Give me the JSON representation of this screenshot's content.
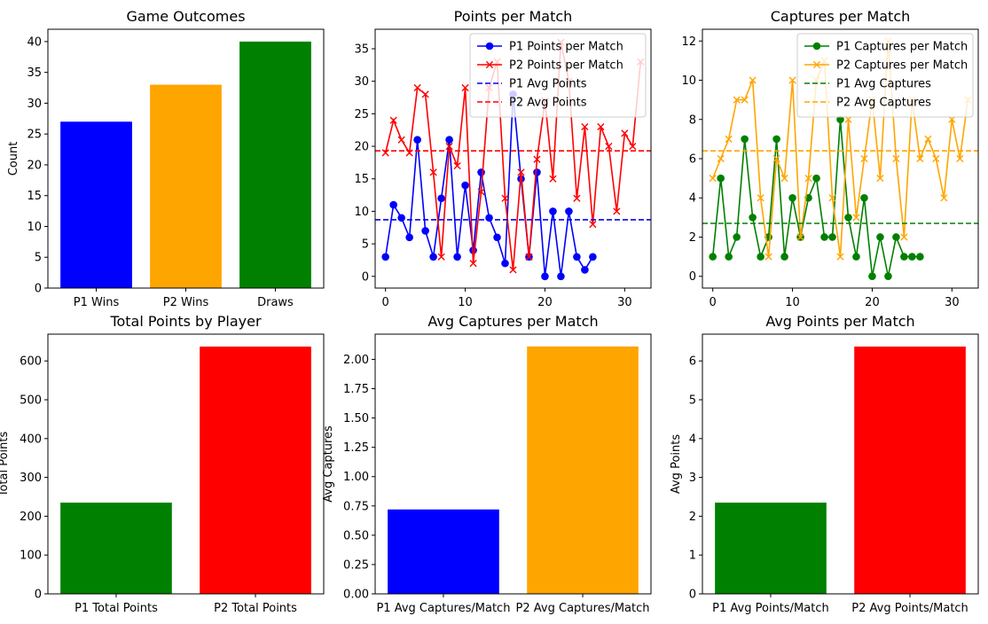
{
  "charts": [
    {
      "id": "game-outcomes",
      "type": "bar",
      "title": "Game Outcomes",
      "ylabel": "Count",
      "xlabel": "",
      "categories": [
        "P1 Wins",
        "P2 Wins",
        "Draws"
      ],
      "values": [
        27,
        33,
        40
      ],
      "colors": [
        "#0000ff",
        "#ffa500",
        "#008000"
      ],
      "ylim": [
        0,
        42
      ],
      "yticks": [
        0,
        5,
        10,
        15,
        20,
        25,
        30,
        35,
        40
      ]
    },
    {
      "id": "points-per-match",
      "type": "line",
      "title": "Points per Match",
      "xlim": [
        -1.3,
        33.3
      ],
      "ylim": [
        -1.8,
        38
      ],
      "xticks": [
        0,
        10,
        20,
        30
      ],
      "yticks": [
        0,
        5,
        10,
        15,
        20,
        25,
        30,
        35
      ],
      "series": [
        {
          "name": "P1 Points per Match",
          "color": "#0000ff",
          "marker": "circle",
          "values": [
            3,
            11,
            9,
            6,
            21,
            7,
            3,
            12,
            21,
            3,
            14,
            4,
            16,
            9,
            6,
            2,
            28,
            15,
            3,
            16,
            0,
            10,
            0,
            10,
            3,
            1,
            3
          ]
        },
        {
          "name": "P2 Points per Match",
          "color": "#ff0000",
          "marker": "x",
          "values": [
            19,
            24,
            21,
            19,
            29,
            28,
            16,
            3,
            20,
            17,
            29,
            2,
            13,
            29,
            33,
            12,
            1,
            16,
            3,
            18,
            27,
            15,
            36,
            30,
            12,
            23,
            8,
            23,
            20,
            10,
            22,
            20,
            33
          ]
        }
      ],
      "hlines": [
        {
          "name": "P1 Avg Points",
          "color": "#0000ff",
          "value": 8.7
        },
        {
          "name": "P2 Avg Points",
          "color": "#ff0000",
          "value": 19.3
        }
      ],
      "legend": "top-right"
    },
    {
      "id": "captures-per-match",
      "type": "line",
      "title": "Captures per Match",
      "xlim": [
        -1.3,
        33.3
      ],
      "ylim": [
        -0.6,
        12.6
      ],
      "xticks": [
        0,
        10,
        20,
        30
      ],
      "yticks": [
        0,
        2,
        4,
        6,
        8,
        10,
        12
      ],
      "series": [
        {
          "name": "P1 Captures per Match",
          "color": "#008000",
          "marker": "circle",
          "values": [
            1,
            5,
            1,
            2,
            7,
            3,
            1,
            2,
            7,
            1,
            4,
            2,
            4,
            5,
            2,
            2,
            8,
            3,
            1,
            4,
            0,
            2,
            0,
            2,
            1,
            1,
            1
          ]
        },
        {
          "name": "P2 Captures per Match",
          "color": "#ffa500",
          "marker": "x",
          "values": [
            5,
            6,
            7,
            9,
            9,
            10,
            4,
            1,
            6,
            5,
            10,
            2,
            5,
            10,
            11,
            4,
            1,
            8,
            3,
            6,
            9,
            5,
            12,
            6,
            2,
            9,
            6,
            7,
            6,
            4,
            8,
            6,
            9
          ]
        }
      ],
      "hlines": [
        {
          "name": "P1 Avg Captures",
          "color": "#008000",
          "value": 2.7
        },
        {
          "name": "P2 Avg Captures",
          "color": "#ffa500",
          "value": 6.4
        }
      ],
      "legend": "top-right"
    },
    {
      "id": "total-points-by-player",
      "type": "bar",
      "title": "Total Points by Player",
      "ylabel": "Total Points",
      "xlabel": "",
      "categories": [
        "P1 Total Points",
        "P2 Total Points"
      ],
      "values": [
        235,
        637
      ],
      "colors": [
        "#008000",
        "#ff0000"
      ],
      "ylim": [
        0,
        669
      ],
      "yticks": [
        0,
        100,
        200,
        300,
        400,
        500,
        600
      ]
    },
    {
      "id": "avg-captures-per-match",
      "type": "bar",
      "title": "Avg Captures per Match",
      "ylabel": "Avg Captures",
      "xlabel": "",
      "categories": [
        "P1 Avg Captures/Match",
        "P2 Avg Captures/Match"
      ],
      "values": [
        0.72,
        2.11
      ],
      "colors": [
        "#0000ff",
        "#ffa500"
      ],
      "ylim": [
        0,
        2.215
      ],
      "yticks": [
        "0.00",
        "0.25",
        "0.50",
        "0.75",
        "1.00",
        "1.25",
        "1.50",
        "1.75",
        "2.00"
      ]
    },
    {
      "id": "avg-points-per-match",
      "type": "bar",
      "title": "Avg Points per Match",
      "ylabel": "Avg Points",
      "xlabel": "",
      "categories": [
        "P1 Avg Points/Match",
        "P2 Avg Points/Match"
      ],
      "values": [
        2.35,
        6.37
      ],
      "colors": [
        "#008000",
        "#ff0000"
      ],
      "ylim": [
        0,
        6.69
      ],
      "yticks": [
        0,
        1,
        2,
        3,
        4,
        5,
        6
      ]
    }
  ]
}
